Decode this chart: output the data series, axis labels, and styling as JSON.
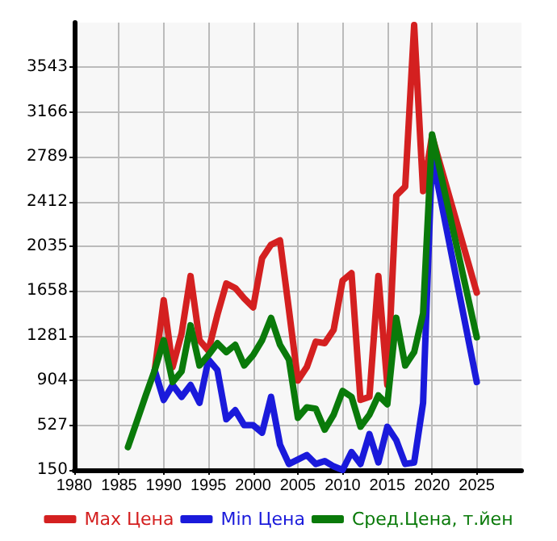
{
  "chart_data": {
    "type": "line",
    "x": [
      1986,
      1987,
      1988,
      1989,
      1990,
      1991,
      1992,
      1993,
      1994,
      1995,
      1996,
      1997,
      1998,
      1999,
      2000,
      2001,
      2002,
      2003,
      2004,
      2005,
      2006,
      2007,
      2008,
      2009,
      2010,
      2011,
      2012,
      2013,
      2014,
      2015,
      2016,
      2017,
      2018,
      2019,
      2020,
      2025
    ],
    "series": [
      {
        "name": "Max Цена",
        "color": "#d42020",
        "values": [
          null,
          null,
          null,
          990,
          1580,
          1017,
          1300,
          1784,
          1243,
          1155,
          1457,
          1721,
          1683,
          1595,
          1520,
          1935,
          2048,
          2085,
          1500,
          904,
          1017,
          1231,
          1218,
          1331,
          1746,
          1809,
          740,
          766,
          1784,
          866,
          2462,
          2538,
          3900,
          2500,
          2965,
          1645
        ]
      },
      {
        "name": "Min Цена",
        "color": "#1a1adb",
        "values": [
          null,
          null,
          null,
          990,
          740,
          866,
          766,
          866,
          716,
          1080,
          992,
          577,
          653,
          527,
          527,
          464,
          766,
          364,
          200,
          238,
          276,
          200,
          225,
          180,
          150,
          301,
          200,
          452,
          213,
          514,
          401,
          200,
          213,
          716,
          2800,
          891
        ]
      },
      {
        "name": "Сред.Цена, т.йен",
        "color": "#0a7a0a",
        "values": [
          342,
          560,
          780,
          992,
          1243,
          891,
          980,
          1369,
          1030,
          1118,
          1218,
          1143,
          1205,
          1030,
          1118,
          1243,
          1432,
          1205,
          1080,
          590,
          678,
          666,
          489,
          615,
          816,
          766,
          514,
          615,
          778,
          703,
          1432,
          1030,
          1143,
          1470,
          2978,
          1268
        ]
      }
    ],
    "xlim": [
      1980,
      2030
    ],
    "xticks": [
      1980,
      1985,
      1990,
      1995,
      2000,
      2005,
      2010,
      2015,
      2020,
      2025
    ],
    "ylim": [
      150,
      3920
    ],
    "yticks": [
      150,
      527,
      904,
      1281,
      1658,
      2035,
      2412,
      2789,
      3166,
      3543
    ],
    "grid": true,
    "legend": "bottom",
    "marker": "none",
    "line_style": "solid"
  }
}
